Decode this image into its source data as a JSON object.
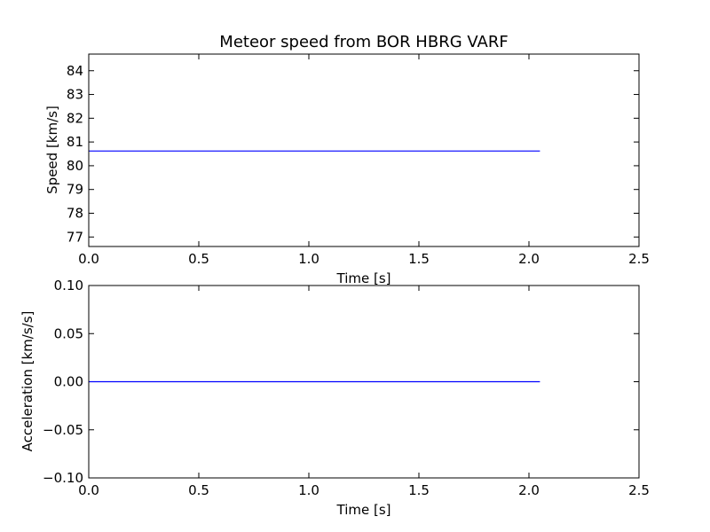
{
  "chart_data": [
    {
      "type": "line",
      "title": "Meteor speed from  BOR HBRG VARF",
      "xlabel": "Time [s]",
      "ylabel": "Speed [km/s]",
      "xlim": [
        0.0,
        2.5
      ],
      "ylim": [
        76.6,
        84.7
      ],
      "x_ticks": [
        "0.0",
        "0.5",
        "1.0",
        "1.5",
        "2.0",
        "2.5"
      ],
      "y_ticks": [
        "77",
        "78",
        "79",
        "80",
        "81",
        "82",
        "83",
        "84"
      ],
      "grid": false,
      "series": [
        {
          "x": [
            0.0,
            2.05
          ],
          "y": [
            80.62,
            80.62
          ],
          "color": "#0000ff"
        }
      ]
    },
    {
      "type": "line",
      "title": "",
      "xlabel": "Time [s]",
      "ylabel": "Acceleration [km/s/s]",
      "xlim": [
        0.0,
        2.5
      ],
      "ylim": [
        -0.1,
        0.1
      ],
      "x_ticks": [
        "0.0",
        "0.5",
        "1.0",
        "1.5",
        "2.0",
        "2.5"
      ],
      "y_ticks": [
        "0.10",
        "0.05",
        "0.00",
        "−0.05",
        "−0.10"
      ],
      "grid": false,
      "series": [
        {
          "x": [
            0.0,
            2.05
          ],
          "y": [
            0.0,
            0.0
          ],
          "color": "#0000ff"
        }
      ]
    }
  ]
}
